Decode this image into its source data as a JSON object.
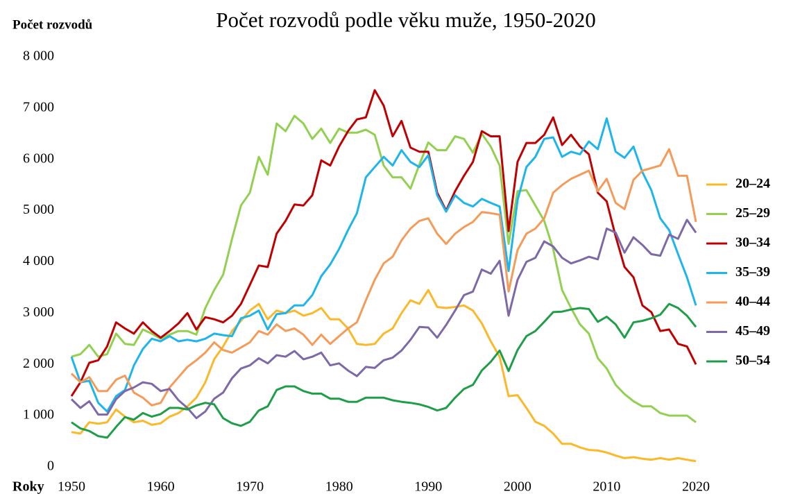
{
  "chart_data": {
    "type": "line",
    "title": "Počet rozvodů podle věku muže, 1950-2020",
    "y_label": "Počet rozvodů",
    "x_label": "Roky",
    "x": [
      1950,
      1951,
      1952,
      1953,
      1954,
      1955,
      1956,
      1957,
      1958,
      1959,
      1960,
      1961,
      1962,
      1963,
      1964,
      1965,
      1966,
      1967,
      1968,
      1969,
      1970,
      1971,
      1972,
      1973,
      1974,
      1975,
      1976,
      1977,
      1978,
      1979,
      1980,
      1981,
      1982,
      1983,
      1984,
      1985,
      1986,
      1987,
      1988,
      1989,
      1990,
      1991,
      1992,
      1993,
      1994,
      1995,
      1996,
      1997,
      1998,
      1999,
      2000,
      2001,
      2002,
      2003,
      2004,
      2005,
      2006,
      2007,
      2008,
      2009,
      2010,
      2011,
      2012,
      2013,
      2014,
      2015,
      2016,
      2017,
      2018,
      2019,
      2020
    ],
    "series": [
      {
        "name": "20–24",
        "color": "#fbb829",
        "values": [
          680,
          650,
          870,
          840,
          870,
          1120,
          980,
          870,
          900,
          820,
          850,
          980,
          1050,
          1180,
          1350,
          1650,
          2100,
          2350,
          2650,
          2850,
          3050,
          3180,
          2880,
          3050,
          3000,
          3050,
          2950,
          3000,
          3100,
          2880,
          2880,
          2700,
          2400,
          2380,
          2400,
          2600,
          2700,
          3000,
          3250,
          3180,
          3450,
          3120,
          3100,
          3120,
          3150,
          3050,
          2800,
          2450,
          2150,
          1380,
          1400,
          1150,
          880,
          800,
          650,
          450,
          450,
          380,
          330,
          320,
          280,
          220,
          170,
          190,
          160,
          140,
          170,
          140,
          170,
          140,
          110
        ]
      },
      {
        "name": "25–29",
        "color": "#92d050",
        "values": [
          2150,
          2200,
          2380,
          2150,
          2200,
          2600,
          2400,
          2380,
          2680,
          2600,
          2500,
          2580,
          2650,
          2650,
          2580,
          3100,
          3450,
          3750,
          4450,
          5100,
          5350,
          6050,
          5700,
          6700,
          6550,
          6850,
          6700,
          6400,
          6600,
          6320,
          6600,
          6520,
          6520,
          6580,
          6480,
          5880,
          5650,
          5650,
          5430,
          5900,
          6330,
          6180,
          6180,
          6450,
          6400,
          6130,
          6500,
          6250,
          5880,
          4350,
          5380,
          5400,
          5100,
          4800,
          4250,
          3450,
          3100,
          2780,
          2600,
          2120,
          1920,
          1600,
          1420,
          1280,
          1180,
          1180,
          1050,
          1000,
          1000,
          1000,
          870
        ]
      },
      {
        "name": "30–34",
        "color": "#c00000",
        "values": [
          1380,
          1650,
          2030,
          2080,
          2350,
          2820,
          2700,
          2600,
          2820,
          2650,
          2520,
          2650,
          2800,
          3000,
          2680,
          2920,
          2880,
          2820,
          2950,
          3180,
          3550,
          3930,
          3900,
          4550,
          4800,
          5120,
          5100,
          5300,
          5980,
          5880,
          6250,
          6550,
          6780,
          6820,
          7350,
          7050,
          6450,
          6750,
          6230,
          6150,
          6150,
          5350,
          5000,
          5380,
          5680,
          5950,
          6550,
          6450,
          6450,
          4600,
          5950,
          6320,
          6320,
          6480,
          6820,
          6280,
          6480,
          6250,
          6100,
          5350,
          5180,
          4500,
          3900,
          3700,
          3150,
          3020,
          2650,
          2680,
          2400,
          2350,
          2000
        ]
      },
      {
        "name": "35–39",
        "color": "#1eb4ec",
        "values": [
          2150,
          1650,
          1680,
          1250,
          1080,
          1380,
          1500,
          1980,
          2300,
          2500,
          2450,
          2550,
          2450,
          2480,
          2450,
          2500,
          2600,
          2570,
          2550,
          2900,
          2950,
          3050,
          2680,
          2980,
          3000,
          3150,
          3150,
          3350,
          3720,
          3950,
          4250,
          4620,
          4950,
          5650,
          5850,
          6050,
          5880,
          6180,
          5950,
          5850,
          6080,
          5300,
          4980,
          5300,
          5150,
          5080,
          5230,
          5150,
          5080,
          3820,
          5200,
          5850,
          6050,
          6400,
          6430,
          6050,
          6150,
          6100,
          6350,
          6200,
          6800,
          6150,
          6030,
          6250,
          5750,
          5400,
          4850,
          4620,
          4150,
          3700,
          3150
        ]
      },
      {
        "name": "40–44",
        "color": "#f59b5a",
        "values": [
          1820,
          1650,
          1750,
          1480,
          1480,
          1700,
          1780,
          1450,
          1350,
          1200,
          1250,
          1550,
          1750,
          1950,
          2080,
          2230,
          2430,
          2280,
          2230,
          2330,
          2430,
          2650,
          2580,
          2780,
          2650,
          2700,
          2580,
          2380,
          2580,
          2400,
          2550,
          2700,
          2820,
          3250,
          3650,
          3970,
          4100,
          4420,
          4650,
          4800,
          4850,
          4550,
          4350,
          4550,
          4680,
          4780,
          4970,
          4950,
          4920,
          3420,
          4230,
          4550,
          4650,
          4850,
          5350,
          5500,
          5620,
          5700,
          5780,
          5380,
          5620,
          5150,
          5030,
          5600,
          5780,
          5830,
          5880,
          6200,
          5680,
          5680,
          4780
        ]
      },
      {
        "name": "45–49",
        "color": "#7d68a8",
        "values": [
          1320,
          1150,
          1280,
          1020,
          1020,
          1320,
          1480,
          1550,
          1650,
          1620,
          1480,
          1520,
          1300,
          1150,
          950,
          1080,
          1330,
          1450,
          1730,
          1920,
          1980,
          2120,
          2020,
          2180,
          2150,
          2260,
          2100,
          2150,
          2230,
          1980,
          2020,
          1880,
          1770,
          1950,
          1930,
          2080,
          2130,
          2270,
          2480,
          2730,
          2720,
          2520,
          2770,
          3050,
          3350,
          3420,
          3850,
          3770,
          4020,
          2950,
          3650,
          4000,
          4080,
          4400,
          4300,
          4080,
          3970,
          4030,
          4100,
          4050,
          4650,
          4570,
          4180,
          4480,
          4330,
          4150,
          4120,
          4530,
          4450,
          4820,
          4570
        ]
      },
      {
        "name": "50–54",
        "color": "#1f9e48",
        "values": [
          870,
          750,
          700,
          600,
          570,
          780,
          970,
          920,
          1050,
          980,
          1030,
          1150,
          1150,
          1120,
          1200,
          1250,
          1220,
          950,
          850,
          800,
          880,
          1100,
          1180,
          1500,
          1570,
          1570,
          1480,
          1430,
          1430,
          1330,
          1330,
          1270,
          1270,
          1350,
          1350,
          1350,
          1300,
          1270,
          1250,
          1220,
          1170,
          1100,
          1150,
          1350,
          1520,
          1600,
          1880,
          2050,
          2270,
          1870,
          2280,
          2550,
          2650,
          2830,
          3020,
          3030,
          3070,
          3100,
          3080,
          2830,
          2930,
          2780,
          2520,
          2820,
          2850,
          2900,
          2970,
          3180,
          3100,
          2950,
          2730
        ]
      }
    ],
    "xlim": [
      1950,
      2020
    ],
    "xticks": [
      1950,
      1960,
      1970,
      1980,
      1990,
      2000,
      2010,
      2020
    ],
    "ylim": [
      0,
      8000
    ],
    "yticks": [
      0,
      {
        "value": 1000,
        "label": "1 000"
      },
      {
        "value": 2000,
        "label": "2 000"
      },
      {
        "value": 3000,
        "label": "3 000"
      },
      {
        "value": 4000,
        "label": "4 000"
      },
      {
        "value": 5000,
        "label": "5 000"
      },
      {
        "value": 6000,
        "label": "6 000"
      },
      {
        "value": 7000,
        "label": "7 000"
      },
      {
        "value": 8000,
        "label": "8 000"
      }
    ],
    "grid": false,
    "legend": "right"
  }
}
